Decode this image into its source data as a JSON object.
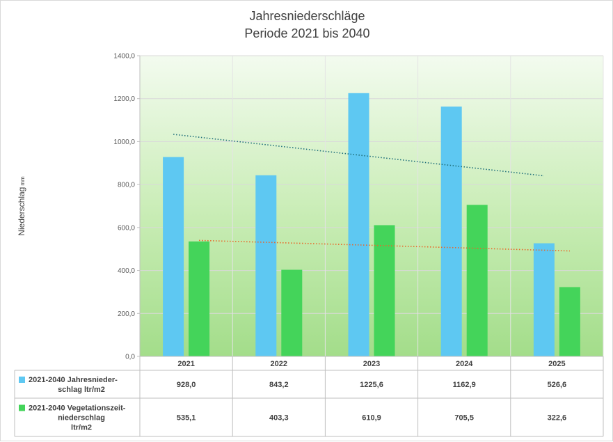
{
  "chart_data": {
    "type": "bar",
    "title": "Jahresniederschläge",
    "subtitle": "Periode 2021 bis 2040",
    "ylabel": "Niederschlag",
    "ylabel_unit": "mm",
    "xlabel": "",
    "ylim": [
      0,
      1400
    ],
    "ytick_labels": [
      "0,0",
      "200,0",
      "400,0",
      "600,0",
      "800,0",
      "1000,0",
      "1200,0",
      "1400,0"
    ],
    "categories": [
      "2021",
      "2022",
      "2023",
      "2024",
      "2025"
    ],
    "grid": true,
    "legend_position": "bottom-left data table",
    "series": [
      {
        "name_lines": [
          "2021-2040 Jahresnieder-",
          "schlag ltr/m2"
        ],
        "color": "#5ec8f2",
        "values": [
          928.0,
          843.2,
          1225.6,
          1162.9,
          526.6
        ],
        "value_labels": [
          "928,0",
          "843,2",
          "1225,6",
          "1162,9",
          "526,6"
        ],
        "trendline": {
          "type": "linear",
          "color": "#1f6f7a"
        }
      },
      {
        "name_lines": [
          "2021-2040 Vegetationszeit-",
          "niederschlag",
          "ltr/m2"
        ],
        "color": "#44d45a",
        "values": [
          535.1,
          403.3,
          610.9,
          705.5,
          322.6
        ],
        "value_labels": [
          "535,1",
          "403,3",
          "610,9",
          "705,5",
          "322,6"
        ],
        "trendline": {
          "type": "linear",
          "color": "#e8682a"
        }
      }
    ]
  }
}
